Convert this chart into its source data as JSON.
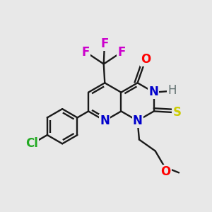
{
  "background_color": "#e8e8e8",
  "bond_color": "#1a1a1a",
  "bond_lw": 1.7,
  "dbo": 0.013,
  "figsize": [
    3.0,
    3.0
  ],
  "dpi": 100,
  "colors": {
    "O": "#ff0000",
    "N": "#0000cc",
    "H": "#607070",
    "S": "#cccc00",
    "F": "#cc00cc",
    "Cl": "#22aa22"
  },
  "label_fontsize": 12
}
